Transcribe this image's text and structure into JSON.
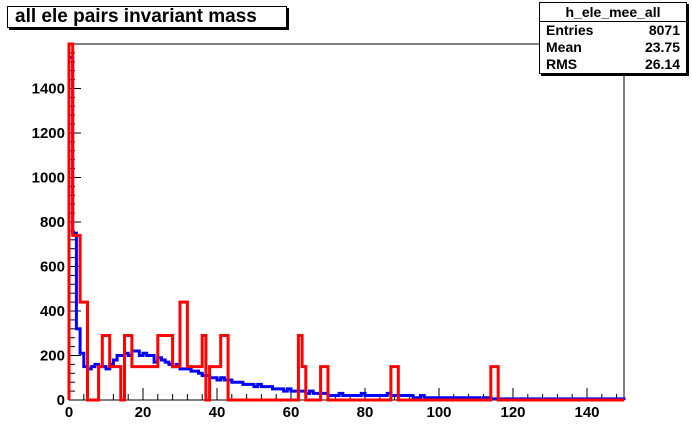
{
  "chart_data": {
    "type": "histogram",
    "title": "all ele pairs invariant mass",
    "xlim": [
      0,
      150
    ],
    "ylim": [
      0,
      1600
    ],
    "x_ticks": [
      0,
      20,
      40,
      60,
      80,
      100,
      120,
      140
    ],
    "y_ticks": [
      0,
      200,
      400,
      600,
      800,
      1000,
      1200,
      1400
    ],
    "grid": false,
    "legend": "none",
    "stats": {
      "name": "h_ele_mee_all",
      "rows": [
        {
          "label": "Entries",
          "value": "8071"
        },
        {
          "label": "Mean",
          "value": "23.75"
        },
        {
          "label": "RMS",
          "value": "26.14"
        }
      ]
    },
    "series": [
      {
        "color": "#0000ff",
        "bin_width": 1,
        "values": [
          1540,
          750,
          320,
          210,
          150,
          140,
          150,
          160,
          150,
          150,
          140,
          160,
          180,
          200,
          200,
          210,
          200,
          220,
          220,
          200,
          210,
          200,
          200,
          170,
          190,
          180,
          170,
          160,
          150,
          160,
          140,
          140,
          140,
          130,
          130,
          120,
          110,
          110,
          100,
          100,
          90,
          100,
          90,
          90,
          80,
          80,
          80,
          70,
          70,
          70,
          60,
          70,
          60,
          60,
          60,
          50,
          50,
          50,
          40,
          50,
          40,
          40,
          40,
          40,
          30,
          40,
          30,
          30,
          30,
          30,
          20,
          20,
          20,
          30,
          20,
          20,
          20,
          20,
          20,
          30,
          20,
          20,
          20,
          20,
          20,
          20,
          30,
          20,
          20,
          20,
          20,
          20,
          20,
          10,
          10,
          20,
          10,
          10,
          10,
          10,
          10,
          10,
          10,
          10,
          10,
          10,
          10,
          10,
          10,
          10,
          10,
          5,
          10,
          10,
          5,
          5,
          5,
          5,
          5,
          5,
          5,
          5,
          5,
          5,
          5,
          5,
          5,
          5,
          5,
          5,
          5,
          5,
          5,
          5,
          5,
          5,
          5,
          5,
          5,
          5,
          5,
          5,
          5,
          5,
          5,
          5,
          5,
          5,
          5,
          5
        ]
      },
      {
        "color": "#ff0000",
        "bin_width": 1,
        "values": [
          1600,
          740,
          740,
          440,
          440,
          0,
          0,
          0,
          150,
          290,
          290,
          150,
          150,
          150,
          0,
          290,
          290,
          150,
          150,
          150,
          150,
          150,
          150,
          150,
          290,
          290,
          290,
          290,
          150,
          150,
          440,
          440,
          150,
          150,
          150,
          150,
          290,
          0,
          150,
          150,
          150,
          290,
          290,
          0,
          0,
          0,
          0,
          0,
          0,
          0,
          0,
          0,
          0,
          0,
          0,
          0,
          0,
          0,
          0,
          0,
          0,
          0,
          290,
          150,
          0,
          0,
          0,
          0,
          150,
          150,
          0,
          0,
          0,
          0,
          0,
          0,
          0,
          0,
          0,
          0,
          0,
          0,
          0,
          0,
          0,
          0,
          0,
          150,
          150,
          0,
          0,
          0,
          0,
          0,
          0,
          0,
          0,
          0,
          0,
          0,
          0,
          0,
          0,
          0,
          0,
          0,
          0,
          0,
          0,
          0,
          0,
          0,
          0,
          0,
          150,
          150,
          0,
          0,
          0,
          0,
          0,
          0,
          0,
          0,
          0,
          0,
          0,
          0,
          0,
          0,
          0,
          0,
          0,
          0,
          0,
          0,
          0,
          0,
          0,
          0,
          0,
          0,
          0,
          0,
          0,
          0,
          0,
          0,
          0,
          0
        ]
      }
    ]
  }
}
